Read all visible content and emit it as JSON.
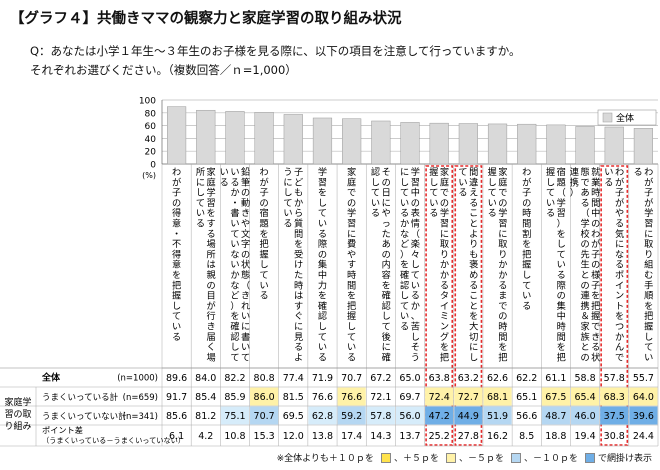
{
  "title": "【グラフ４】共働きママの観察力と家庭学習の取り組み状況",
  "question_line1": "Q：あなたは小学１年生～３年生のお子様を見る際に、以下の項目を注意して行っていますか。",
  "question_line2": "それぞれお選びください。（複数回答／ｎ=1,000）",
  "chart_data": {
    "type": "bar",
    "ylim": [
      0,
      100
    ],
    "yticks": [
      0,
      20,
      40,
      60,
      80,
      100
    ],
    "ylabel": "(%)",
    "legend": "全体",
    "legend_position": "top-right",
    "bar_color": "#d9d9d9",
    "categories": [
      "わが子の得意・不得意を把握している",
      "家庭学習をする場所は親の目が行き届く場所にしている",
      "鉛筆の動きや文字の状態（きれいに書いているか・書いていないかなど）を確認している",
      "わが子の宿題を把握している",
      "子どもから質問を受けた時はすぐに見るようにしている",
      "学習をしている際の集中力を確認している",
      "家庭での学習に費やす時間を把握している",
      "その日にやったあの内容を確認して後に確認している",
      "学習中の表情（楽々しているか、苦しそうにしているかなど）を確認している",
      "家庭での学習に取りかかるタイミングを把握している",
      "間違えることよりも褒めることを大切にしている",
      "家庭での学習に取りかかるまでの時間を把握している",
      "わが子の時間割を把握している",
      "宿題（学習）をしている際の集中時間を把握している",
      "就業時間中のわが子の様子を把握できる状態である（学校の先生との連携＆家族との連携）",
      "わが子がやる気になるポイントをつかんでいる",
      "わが子が学習に取り組む手順を把握している"
    ],
    "highlighted_indices": [
      9,
      10,
      15
    ],
    "table_header": [
      "全体",
      "(n=1000)"
    ],
    "group_label": "家庭学習の取り組み",
    "series": [
      {
        "name": "全体",
        "n": "(n=1000)",
        "values": [
          89.6,
          84.0,
          82.2,
          80.8,
          77.4,
          71.9,
          70.7,
          67.2,
          65.0,
          63.8,
          63.2,
          62.6,
          62.2,
          61.1,
          58.8,
          57.8,
          55.7
        ]
      },
      {
        "name": "うまくいっている計",
        "n": "(n=659)",
        "values": [
          91.7,
          85.4,
          85.9,
          86.0,
          81.5,
          76.6,
          76.6,
          72.1,
          69.7,
          72.4,
          72.7,
          68.1,
          65.1,
          67.5,
          65.4,
          68.3,
          64.0
        ],
        "cell_colors": [
          "",
          "",
          "",
          "#fff2a8",
          "",
          "",
          "#fff2a8",
          "",
          "",
          "#fff2a8",
          "#fff2a8",
          "#fff2a8",
          "",
          "#fff2a8",
          "#fff2a8",
          "#fff2a8",
          "#fff2a8"
        ]
      },
      {
        "name": "うまくいっていない計",
        "n": "(n=341)",
        "values": [
          85.6,
          81.2,
          75.1,
          70.7,
          69.5,
          62.8,
          59.2,
          57.8,
          56.0,
          47.2,
          44.9,
          51.9,
          56.6,
          48.7,
          46.0,
          37.5,
          39.6
        ],
        "cell_colors": [
          "",
          "",
          "#d6ecfa",
          "#b5d7f2",
          "",
          "#d6ecfa",
          "#b5d7f2",
          "#d6ecfa",
          "#d6ecfa",
          "#6faee6",
          "#6faee6",
          "#b5d7f2",
          "",
          "#b5d7f2",
          "#b5d7f2",
          "#6faee6",
          "#6faee6"
        ]
      },
      {
        "name": "ポイント差\n（うまくいっている－うまくいっていない）",
        "n": "",
        "values": [
          6.1,
          4.2,
          10.8,
          15.3,
          12.0,
          13.8,
          17.4,
          14.3,
          13.7,
          25.2,
          27.8,
          16.2,
          8.5,
          18.8,
          19.4,
          30.8,
          24.4
        ]
      }
    ],
    "footnote": {
      "prefix": "※全体よりも＋１０ｐを",
      "items": [
        {
          "color": "#ffe34d",
          "label": "、＋５ｐを"
        },
        {
          "color": "#fff2a8",
          "label": "、－５ｐを"
        },
        {
          "color": "#b5d7f2",
          "label": "、－１０ｐを"
        },
        {
          "color": "#6faee6",
          "label": "で網掛け表示"
        }
      ]
    }
  }
}
